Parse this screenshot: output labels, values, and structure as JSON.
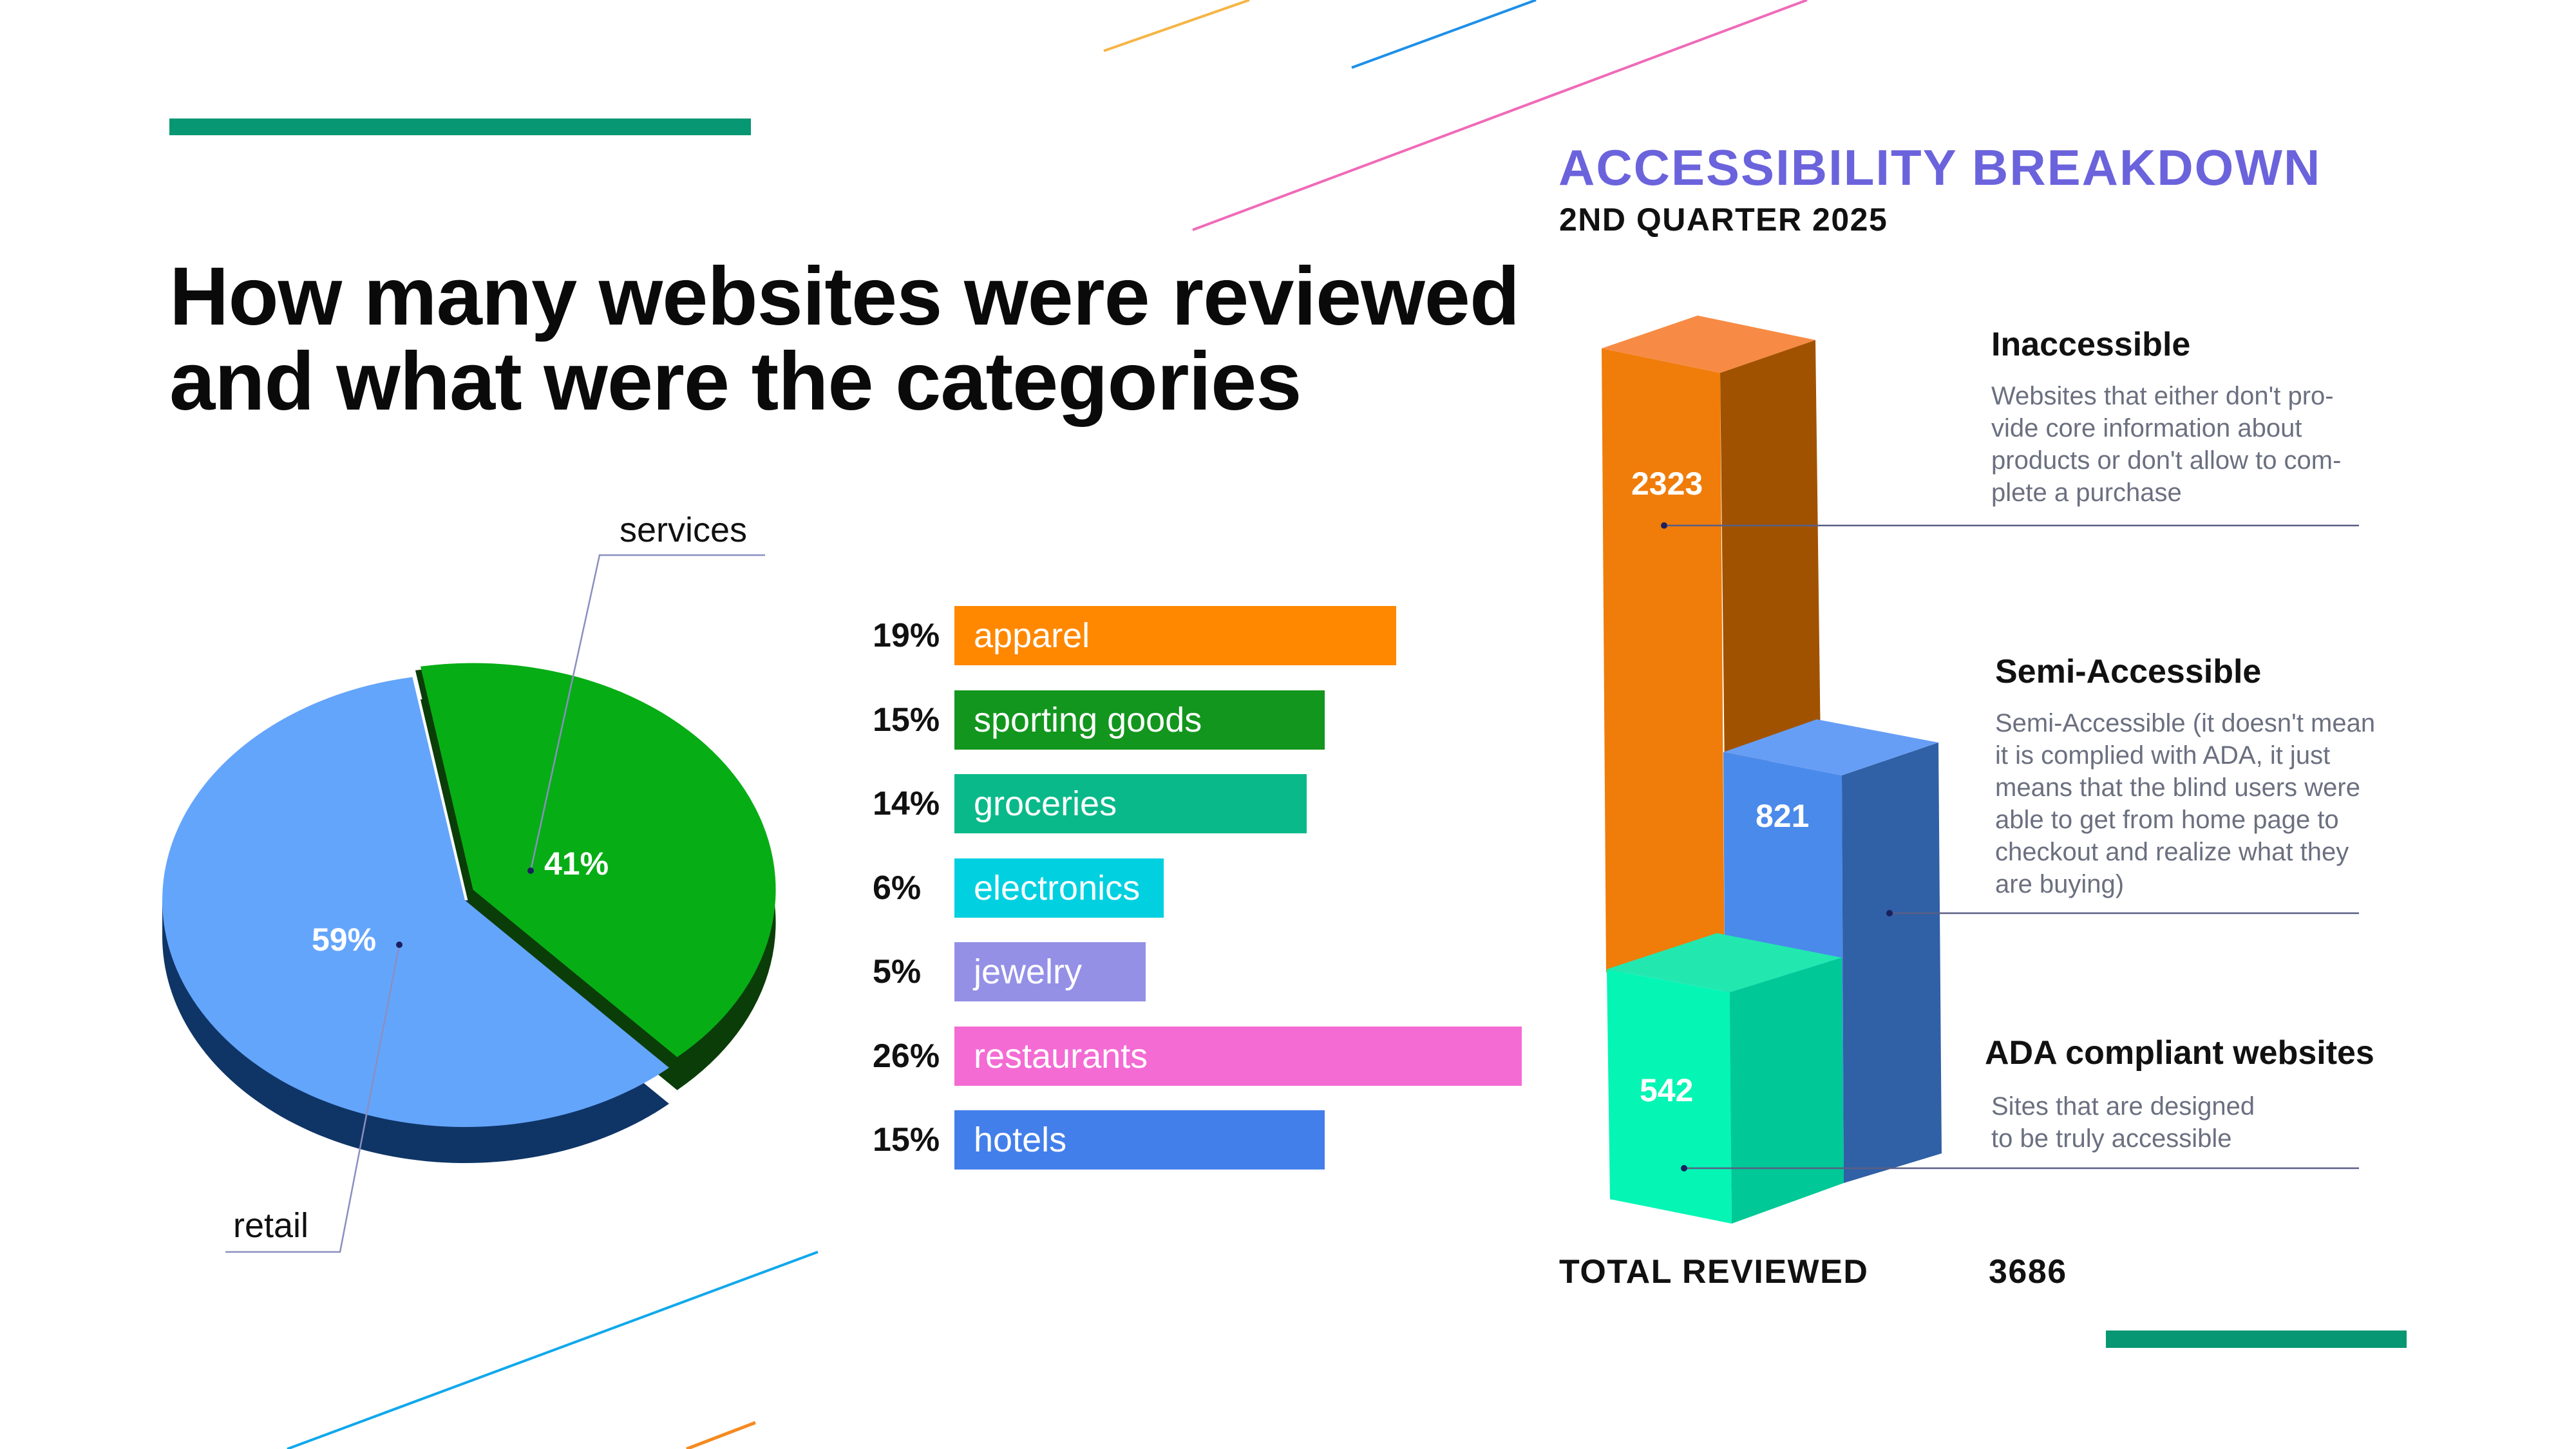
{
  "header": {
    "title_lines": [
      "How many websites were reviewed",
      "and what were the categories"
    ]
  },
  "colors": {
    "accent_green": "#079773",
    "title_purple": "#6b63dc",
    "retail": "#64a5fc",
    "retail_side": "#0f3566",
    "services": "#07ad15",
    "services_side": "#0b3d08"
  },
  "chart_data": [
    {
      "type": "pie",
      "slices": [
        {
          "label": "services",
          "value": 41,
          "value_label": "41%",
          "color": "#07ad15"
        },
        {
          "label": "retail",
          "value": 59,
          "value_label": "59%",
          "color": "#64a5fc"
        }
      ]
    },
    {
      "type": "bar",
      "orientation": "horizontal",
      "categories": [
        "apparel",
        "sporting goods",
        "groceries",
        "electronics",
        "jewelry",
        "restaurants",
        "hotels"
      ],
      "values": [
        19,
        15,
        14,
        6,
        5,
        26,
        15
      ],
      "value_labels": [
        "19%",
        "15%",
        "14%",
        "6%",
        "5%",
        "26%",
        "15%"
      ],
      "colors": [
        "#ff8800",
        "#12961e",
        "#0ab98a",
        "#00d0e0",
        "#9490e6",
        "#f46bd4",
        "#437fea"
      ]
    },
    {
      "type": "bar",
      "style": "3d-stacked",
      "title": "ACCESSIBILITY BREAKDOWN",
      "subtitle": "2ND QUARTER 2025",
      "series": [
        {
          "name": "Inaccessible",
          "value": 2323,
          "color": "#f07c0a",
          "description_lines": [
            "Websites that either don't pro-",
            "vide core information about",
            "products or don't allow to com-",
            "plete a purchase"
          ]
        },
        {
          "name": "Semi-Accessible",
          "value": 821,
          "color": "#4a8aea",
          "description_lines": [
            "Semi-Accessible (it doesn't mean",
            "it is complied with ADA, it just",
            "means that the blind users were",
            "able to get from home page to",
            "checkout and realize what they",
            "are buying)"
          ]
        },
        {
          "name": "ADA compliant websites",
          "value": 542,
          "color": "#05f5b5",
          "description_lines": [
            "Sites that are designed",
            "to be truly accessible"
          ]
        }
      ],
      "total_label": "TOTAL REVIEWED",
      "total_value": 3686
    }
  ]
}
